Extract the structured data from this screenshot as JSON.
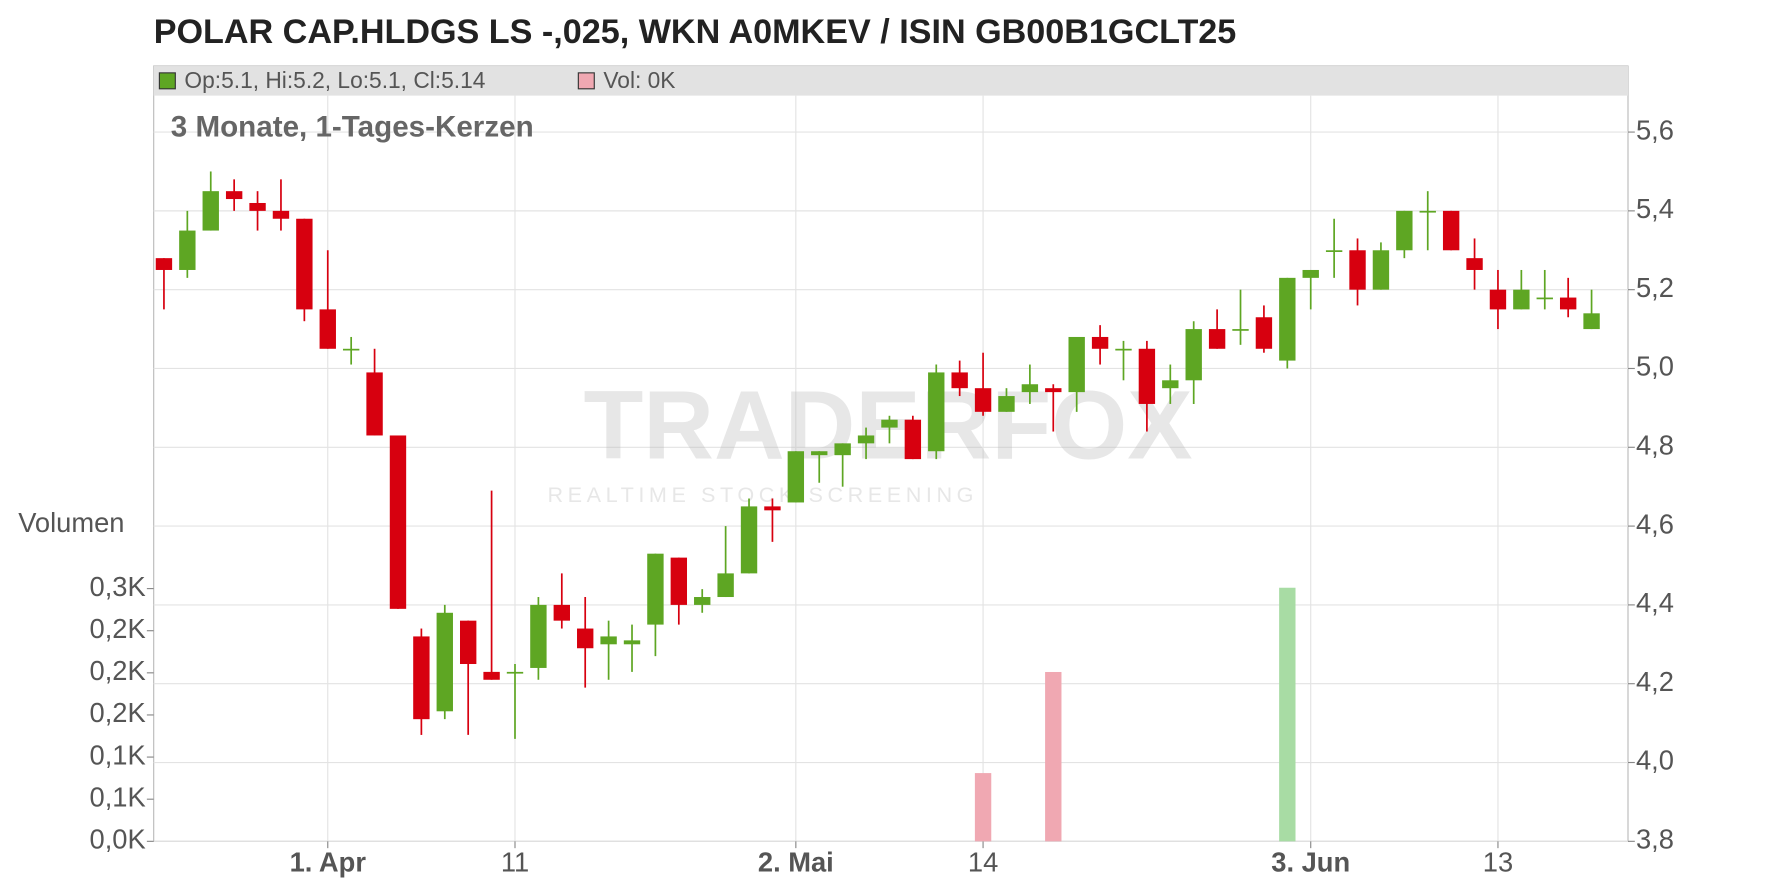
{
  "chart_data": {
    "type": "candlestick",
    "title": "POLAR CAP.HLDGS LS -,025, WKN A0MKEV / ISIN GB00B1GCLT25",
    "legend": [
      "Op:5.1, Hi:5.2, Lo:5.1, Cl:5.14",
      "Vol: 0K"
    ],
    "subtitle": "3 Monate, 1-Tages-Kerzen",
    "volume_label": "Volumen",
    "watermark": [
      "TRADERFOX",
      "REALTIME STOCK SCREENING"
    ],
    "categories": [
      null,
      null,
      null,
      null,
      null,
      null,
      null,
      "1. Apr",
      null,
      null,
      null,
      null,
      null,
      null,
      null,
      "11",
      null,
      null,
      null,
      null,
      null,
      null,
      null,
      null,
      null,
      null,
      null,
      "2. Mai",
      null,
      null,
      null,
      null,
      null,
      null,
      null,
      "14",
      null,
      null,
      null,
      null,
      null,
      null,
      null,
      null,
      null,
      null,
      null,
      null,
      null,
      "3. Jun",
      null,
      null,
      null,
      null,
      null,
      null,
      null,
      "13",
      null,
      null,
      null,
      null
    ],
    "open": [
      5.28,
      5.25,
      5.35,
      5.45,
      5.42,
      5.4,
      5.38,
      5.15,
      5.05,
      4.99,
      4.83,
      4.32,
      4.13,
      4.36,
      4.23,
      4.23,
      4.24,
      4.4,
      4.34,
      4.3,
      4.3,
      4.35,
      4.52,
      4.4,
      4.42,
      4.48,
      4.65,
      4.66,
      4.78,
      4.78,
      4.81,
      4.85,
      4.87,
      4.79,
      4.99,
      4.95,
      4.89,
      4.94,
      4.95,
      4.94,
      5.08,
      5.05,
      5.05,
      4.95,
      4.97,
      5.1,
      5.1,
      5.13,
      5.02,
      5.23,
      5.3,
      5.3,
      5.2,
      5.3,
      5.4,
      5.4,
      5.28,
      5.2,
      5.15,
      5.18,
      5.18,
      5.1
    ],
    "high": [
      5.28,
      5.4,
      5.5,
      5.48,
      5.45,
      5.48,
      5.38,
      5.3,
      5.08,
      5.05,
      4.83,
      4.34,
      4.4,
      4.36,
      4.69,
      4.25,
      4.42,
      4.48,
      4.42,
      4.36,
      4.35,
      4.53,
      4.52,
      4.44,
      4.6,
      4.67,
      4.67,
      4.79,
      4.79,
      4.81,
      4.85,
      4.88,
      4.88,
      5.01,
      5.02,
      5.04,
      4.95,
      5.01,
      4.96,
      5.08,
      5.11,
      5.07,
      5.07,
      5.01,
      5.12,
      5.15,
      5.2,
      5.16,
      5.23,
      5.25,
      5.38,
      5.33,
      5.32,
      5.4,
      5.45,
      5.4,
      5.33,
      5.25,
      5.25,
      5.25,
      5.23,
      5.2
    ],
    "low": [
      5.15,
      5.23,
      5.35,
      5.4,
      5.35,
      5.35,
      5.12,
      5.05,
      5.01,
      4.83,
      4.39,
      4.07,
      4.11,
      4.07,
      4.21,
      4.06,
      4.21,
      4.34,
      4.19,
      4.21,
      4.23,
      4.27,
      4.35,
      4.38,
      4.42,
      4.48,
      4.56,
      4.66,
      4.71,
      4.7,
      4.77,
      4.81,
      4.77,
      4.77,
      4.93,
      4.88,
      4.89,
      4.91,
      4.84,
      4.89,
      5.01,
      4.97,
      4.84,
      4.91,
      4.91,
      5.05,
      5.06,
      5.04,
      5.0,
      5.15,
      5.23,
      5.16,
      5.2,
      5.28,
      5.3,
      5.3,
      5.2,
      5.1,
      5.15,
      5.15,
      5.13,
      5.1
    ],
    "close": [
      5.25,
      5.35,
      5.45,
      5.43,
      5.4,
      5.38,
      5.15,
      5.05,
      5.05,
      4.83,
      4.39,
      4.11,
      4.38,
      4.25,
      4.21,
      4.23,
      4.4,
      4.36,
      4.29,
      4.32,
      4.31,
      4.53,
      4.4,
      4.42,
      4.48,
      4.65,
      4.64,
      4.79,
      4.79,
      4.81,
      4.83,
      4.87,
      4.77,
      4.99,
      4.95,
      4.89,
      4.93,
      4.96,
      4.94,
      5.08,
      5.05,
      5.05,
      4.91,
      4.97,
      5.1,
      5.05,
      5.1,
      5.05,
      5.23,
      5.25,
      5.3,
      5.2,
      5.3,
      5.4,
      5.4,
      5.3,
      5.25,
      5.15,
      5.2,
      5.18,
      5.15,
      5.14
    ],
    "volume": [
      0,
      0,
      0,
      0,
      0,
      0,
      0,
      0,
      0,
      0,
      0,
      0,
      0,
      0,
      0,
      0,
      0,
      0,
      0,
      0,
      0,
      0,
      0,
      0,
      0,
      0,
      0,
      0,
      0,
      0,
      0,
      0,
      0,
      0,
      0,
      81,
      0,
      0,
      201,
      0,
      0,
      0,
      0,
      0,
      0,
      0,
      0,
      0,
      301,
      0,
      0,
      0,
      0,
      0,
      0,
      0,
      0,
      0,
      0,
      0,
      0,
      0
    ],
    "colors": {
      "up": "#5ea623",
      "down": "#d7000f",
      "volume_up": "#a8dca4",
      "volume_down": "#f0a8b2",
      "legend_volume": "#f0a8b2"
    },
    "ylim": [
      3.8,
      5.6
    ],
    "yticks": [
      {
        "value": 3.8,
        "label": "3,8"
      },
      {
        "value": 4.0,
        "label": "4,0"
      },
      {
        "value": 4.2,
        "label": "4,2"
      },
      {
        "value": 4.4,
        "label": "4,4"
      },
      {
        "value": 4.6,
        "label": "4,6"
      },
      {
        "value": 4.8,
        "label": "4,8"
      },
      {
        "value": 5.0,
        "label": "5,0"
      },
      {
        "value": 5.2,
        "label": "5,2"
      },
      {
        "value": 5.4,
        "label": "5,4"
      },
      {
        "value": 5.6,
        "label": "5,6"
      }
    ],
    "y2lim": [
      0,
      300
    ],
    "y2ticks": [
      {
        "value": 0,
        "label": "0,0K"
      },
      {
        "value": 50,
        "label": "0,1K"
      },
      {
        "value": 100,
        "label": "0,1K"
      },
      {
        "value": 150,
        "label": "0,2K"
      },
      {
        "value": 200,
        "label": "0,2K"
      },
      {
        "value": 250,
        "label": "0,2K"
      },
      {
        "value": 300,
        "label": "0,3K"
      }
    ],
    "grid": true
  }
}
